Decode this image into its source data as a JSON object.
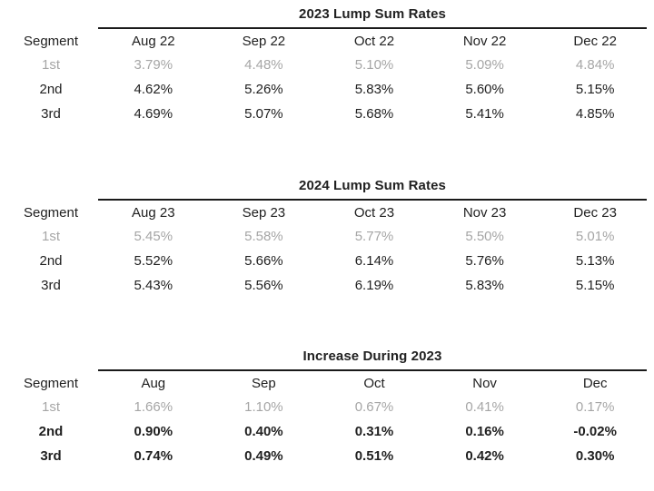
{
  "page": {
    "background_color": "#ffffff",
    "text_color": "#212121",
    "muted_text_color": "#a6a6a6",
    "rule_color": "#1a1a1a"
  },
  "chart_data": {
    "type": "table",
    "tables_note": "three static rate tables, no interactive elements"
  },
  "tables": [
    {
      "title": "2023 Lump Sum Rates",
      "segment_header": "Segment",
      "columns": [
        "Aug 22",
        "Sep 22",
        "Oct 22",
        "Nov 22",
        "Dec 22"
      ],
      "rows": [
        {
          "segment": "1st",
          "muted": true,
          "bold": false,
          "values": [
            "3.79%",
            "4.48%",
            "5.10%",
            "5.09%",
            "4.84%"
          ]
        },
        {
          "segment": "2nd",
          "muted": false,
          "bold": false,
          "values": [
            "4.62%",
            "5.26%",
            "5.83%",
            "5.60%",
            "5.15%"
          ]
        },
        {
          "segment": "3rd",
          "muted": false,
          "bold": false,
          "values": [
            "4.69%",
            "5.07%",
            "5.68%",
            "5.41%",
            "4.85%"
          ]
        }
      ]
    },
    {
      "title": "2024 Lump Sum Rates",
      "segment_header": "Segment",
      "columns": [
        "Aug 23",
        "Sep 23",
        "Oct 23",
        "Nov 23",
        "Dec 23"
      ],
      "rows": [
        {
          "segment": "1st",
          "muted": true,
          "bold": false,
          "values": [
            "5.45%",
            "5.58%",
            "5.77%",
            "5.50%",
            "5.01%"
          ]
        },
        {
          "segment": "2nd",
          "muted": false,
          "bold": false,
          "values": [
            "5.52%",
            "5.66%",
            "6.14%",
            "5.76%",
            "5.13%"
          ]
        },
        {
          "segment": "3rd",
          "muted": false,
          "bold": false,
          "values": [
            "5.43%",
            "5.56%",
            "6.19%",
            "5.83%",
            "5.15%"
          ]
        }
      ]
    },
    {
      "title": "Increase During 2023",
      "segment_header": "Segment",
      "columns": [
        "Aug",
        "Sep",
        "Oct",
        "Nov",
        "Dec"
      ],
      "rows": [
        {
          "segment": "1st",
          "muted": true,
          "bold": false,
          "values": [
            "1.66%",
            "1.10%",
            "0.67%",
            "0.41%",
            "0.17%"
          ]
        },
        {
          "segment": "2nd",
          "muted": false,
          "bold": true,
          "values": [
            "0.90%",
            "0.40%",
            "0.31%",
            "0.16%",
            "-0.02%"
          ]
        },
        {
          "segment": "3rd",
          "muted": false,
          "bold": true,
          "values": [
            "0.74%",
            "0.49%",
            "0.51%",
            "0.42%",
            "0.30%"
          ]
        }
      ]
    }
  ]
}
